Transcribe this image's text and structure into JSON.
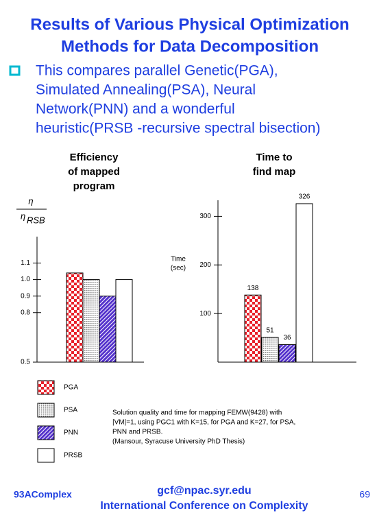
{
  "title": [
    "Results of Various Physical Optimization",
    "Methods for Data Decomposition"
  ],
  "bullet": [
    "This compares parallel Genetic(PGA),",
    "Simulated Annealing(PSA), Neural",
    "Network(PNN) and a wonderful",
    "heuristic(PRSB -recursive spectral bisection)"
  ],
  "chart_data": [
    {
      "type": "bar",
      "title": [
        "Efficiency",
        "of mapped",
        "program"
      ],
      "ylabel": {
        "numerator": "η",
        "denominator": "η",
        "subscript": "RSB"
      },
      "categories": [
        "PGA",
        "PSA",
        "PNN",
        "PRSB"
      ],
      "values": [
        1.04,
        1.0,
        0.9,
        1.0
      ],
      "colors": [
        "#e8202a",
        "#777777",
        "#5533cc",
        "#ffffff"
      ],
      "ylim": [
        0.5,
        1.26
      ],
      "yticks": [
        0.5,
        0.8,
        0.9,
        {
          "value": 1,
          "label": "1.0"
        },
        1.1
      ]
    },
    {
      "type": "bar",
      "title": [
        "Time to",
        "find map"
      ],
      "ylabel": [
        "Time",
        "(sec)"
      ],
      "values": [
        138,
        51,
        36,
        326
      ],
      "colors": [
        "#e8202a",
        "#777777",
        "#5533cc",
        "#ffffff"
      ],
      "ylim": [
        0,
        333
      ],
      "yticks": [
        100,
        200,
        300
      ]
    }
  ],
  "caption": [
    "Solution quality and time  for mapping FEMW(9428) with",
    "|VM|=1, using PGC1 with K=15, for PGA and K=27, for PSA,",
    "PNN and PRSB.",
    "(Mansour, Syracuse University PhD Thesis)"
  ],
  "footer": {
    "left": "93AComplex",
    "email": "gcf@npac.syr.edu",
    "conference": "International Conference on Complexity",
    "page": "69"
  }
}
